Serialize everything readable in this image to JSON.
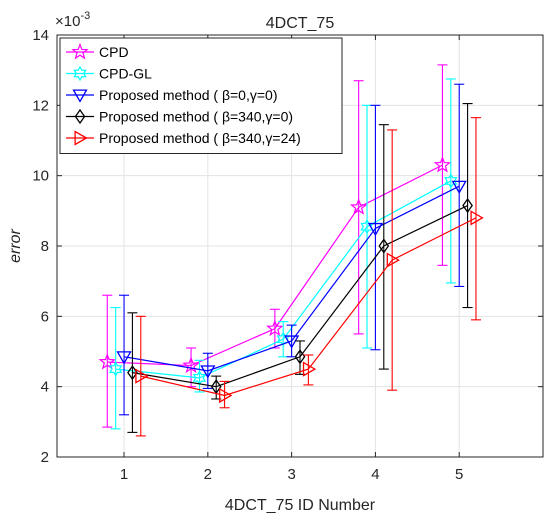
{
  "chart_data": {
    "type": "line",
    "title": "4DCT_75",
    "xlabel": "4DCT_75 ID Number",
    "ylabel": "error",
    "y_exponent_label": "×10",
    "y_exponent_power": "-3",
    "xlim": [
      0.2,
      6.0
    ],
    "ylim": [
      2,
      14
    ],
    "x_ticks": [
      "1",
      "2",
      "3",
      "4",
      "5"
    ],
    "x_tick_values": [
      1,
      2,
      3,
      4,
      5
    ],
    "y_ticks": [
      "2",
      "4",
      "6",
      "8",
      "10",
      "12",
      "14"
    ],
    "y_tick_values": [
      2,
      4,
      6,
      8,
      10,
      12,
      14
    ],
    "grid": true,
    "legend_position": "top-left",
    "series": [
      {
        "name": "CPD",
        "color": "#ff00ff",
        "marker": "star",
        "x": [
          0.8,
          1.8,
          2.8,
          3.8,
          4.8
        ],
        "y": [
          4.7,
          4.6,
          5.65,
          9.1,
          10.3
        ],
        "err_low": [
          2.85,
          4.0,
          5.1,
          5.5,
          7.45
        ],
        "err_high": [
          6.6,
          5.1,
          6.2,
          12.7,
          13.15
        ]
      },
      {
        "name": "CPD-GL",
        "color": "#00ffff",
        "marker": "hexagram",
        "x": [
          0.9,
          1.9,
          2.9,
          3.9,
          4.9
        ],
        "y": [
          4.5,
          4.25,
          5.35,
          8.55,
          9.85
        ],
        "err_low": [
          2.8,
          3.85,
          4.85,
          5.1,
          6.95
        ],
        "err_high": [
          6.25,
          4.75,
          5.85,
          12.0,
          12.75
        ]
      },
      {
        "name": "Proposed method ( β=0,γ=0)",
        "color": "#0000ff",
        "marker": "triangle-down",
        "x": [
          1.0,
          2.0,
          3.0,
          4.0,
          5.0
        ],
        "y": [
          4.85,
          4.45,
          5.3,
          8.5,
          9.7
        ],
        "err_low": [
          3.2,
          3.95,
          4.85,
          5.05,
          6.85
        ],
        "err_high": [
          6.6,
          4.95,
          5.75,
          12.0,
          12.6
        ]
      },
      {
        "name": "Proposed method ( β=340,γ=0)",
        "color": "#000000",
        "marker": "diamond",
        "x": [
          1.1,
          2.1,
          3.1,
          4.1,
          5.1
        ],
        "y": [
          4.4,
          4.0,
          4.85,
          8.0,
          9.15
        ],
        "err_low": [
          2.7,
          3.65,
          4.35,
          4.5,
          6.25
        ],
        "err_high": [
          6.1,
          4.3,
          5.3,
          11.45,
          12.05
        ]
      },
      {
        "name": "Proposed method ( β=340,γ=24)",
        "color": "#ff0000",
        "marker": "triangle-right",
        "x": [
          1.2,
          2.2,
          3.2,
          4.2,
          5.2
        ],
        "y": [
          4.3,
          3.75,
          4.5,
          7.6,
          8.8
        ],
        "err_low": [
          2.6,
          3.4,
          4.05,
          3.9,
          5.9
        ],
        "err_high": [
          6.0,
          4.15,
          4.9,
          11.3,
          11.65
        ]
      }
    ]
  }
}
